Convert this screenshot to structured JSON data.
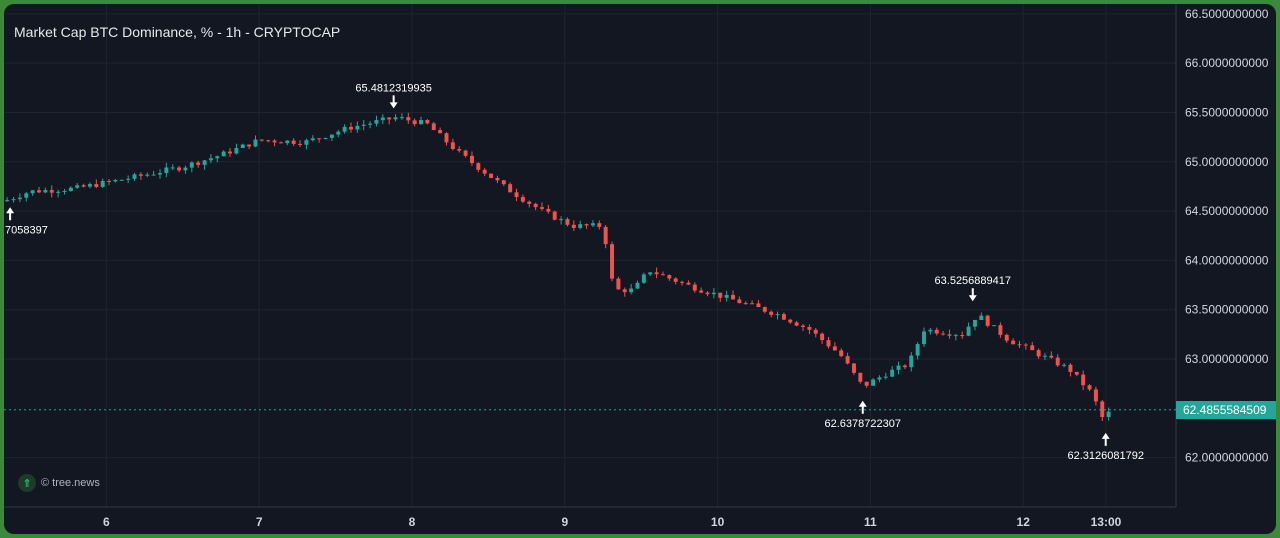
{
  "title": "Market Cap BTC Dominance, % - 1h - CRYPTOCAP",
  "watermark": {
    "text": "© tree.news",
    "icon": "double-chevron-up-icon"
  },
  "colors": {
    "up": "#26a69a",
    "down": "#ef5350",
    "background": "#131722",
    "grid": "#1f2430",
    "text": "#d1d4dc"
  },
  "last_price": "62.4855584509",
  "chart_data": {
    "type": "candlestick",
    "title": "Market Cap BTC Dominance, % - 1h - CRYPTOCAP",
    "y_range": [
      61.5,
      66.6
    ],
    "y_ticks": [
      "66.5000000000",
      "66.0000000000",
      "65.5000000000",
      "65.0000000000",
      "64.5000000000",
      "64.0000000000",
      "63.5000000000",
      "63.0000000000",
      "62.0000000000"
    ],
    "y_tick_values": [
      66.5,
      66.0,
      65.5,
      65.0,
      64.5,
      64.0,
      63.5,
      63.0,
      62.0
    ],
    "x_ticks": [
      "6",
      "7",
      "8",
      "9",
      "10",
      "11",
      "12",
      "13:00"
    ],
    "x_tick_days": [
      6,
      7,
      8,
      9,
      10,
      11,
      12,
      12.5417
    ],
    "x_range_days": [
      5.33,
      13.0
    ],
    "grid": true,
    "current_price": 62.4855584509,
    "annotations": [
      {
        "label": "65.4812319935",
        "day": 7.88,
        "value": 65.4812319935,
        "kind": "high"
      },
      {
        "label": "7058397",
        "day": 5.37,
        "value": 64.6,
        "kind": "low"
      },
      {
        "label": "62.6378722307",
        "day": 10.95,
        "value": 62.6378722307,
        "kind": "low"
      },
      {
        "label": "63.5256889417",
        "day": 11.67,
        "value": 63.5256889417,
        "kind": "high"
      },
      {
        "label": "62.3126081792",
        "day": 12.54,
        "value": 62.3126081792,
        "kind": "low"
      }
    ],
    "anchors": [
      [
        5.33,
        64.6
      ],
      [
        5.5,
        64.7
      ],
      [
        5.8,
        64.73
      ],
      [
        6.2,
        64.85
      ],
      [
        6.5,
        64.95
      ],
      [
        6.75,
        65.07
      ],
      [
        7.0,
        65.22
      ],
      [
        7.3,
        65.2
      ],
      [
        7.6,
        65.35
      ],
      [
        7.9,
        65.45
      ],
      [
        8.1,
        65.38
      ],
      [
        8.3,
        65.1
      ],
      [
        8.6,
        64.75
      ],
      [
        8.85,
        64.5
      ],
      [
        9.05,
        64.35
      ],
      [
        9.25,
        64.35
      ],
      [
        9.32,
        63.7
      ],
      [
        9.45,
        63.7
      ],
      [
        9.55,
        63.9
      ],
      [
        9.8,
        63.75
      ],
      [
        10.1,
        63.6
      ],
      [
        10.4,
        63.45
      ],
      [
        10.6,
        63.3
      ],
      [
        10.8,
        63.05
      ],
      [
        10.95,
        62.72
      ],
      [
        11.1,
        62.85
      ],
      [
        11.25,
        62.95
      ],
      [
        11.35,
        63.3
      ],
      [
        11.6,
        63.25
      ],
      [
        11.7,
        63.45
      ],
      [
        11.9,
        63.2
      ],
      [
        12.1,
        63.05
      ],
      [
        12.3,
        62.9
      ],
      [
        12.45,
        62.65
      ],
      [
        12.52,
        62.4
      ],
      [
        12.58,
        62.48
      ]
    ]
  }
}
